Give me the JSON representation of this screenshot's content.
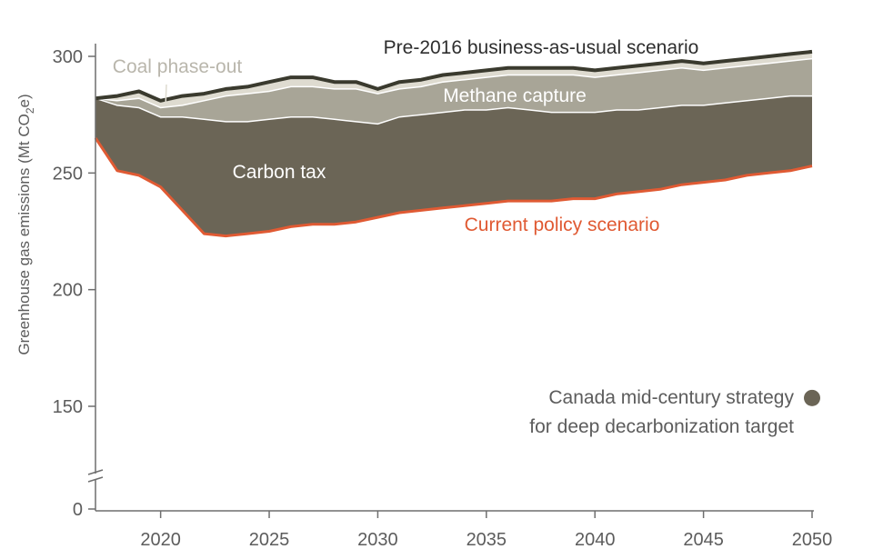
{
  "chart_data": {
    "type": "area",
    "title": "",
    "xlabel": "",
    "ylabel": {
      "prefix": "Greenhouse gas emissions (Mt CO",
      "sub": "2",
      "suffix": "e)"
    },
    "xlim": [
      2017,
      2050
    ],
    "ylim": [
      0,
      315
    ],
    "y_axis_break": "between 0 and 150 (break marks on axis)",
    "x_ticks": [
      2020,
      2025,
      2030,
      2035,
      2040,
      2045,
      2050
    ],
    "y_ticks": [
      0,
      150,
      200,
      250,
      300
    ],
    "grid": false,
    "legend": "none (direct labels)",
    "x": [
      2017,
      2018,
      2019,
      2020,
      2021,
      2022,
      2023,
      2024,
      2025,
      2026,
      2027,
      2028,
      2029,
      2030,
      2031,
      2032,
      2033,
      2034,
      2035,
      2036,
      2037,
      2038,
      2039,
      2040,
      2041,
      2042,
      2043,
      2044,
      2045,
      2046,
      2047,
      2048,
      2049,
      2050
    ],
    "series": [
      {
        "name": "Pre-2016 business-as-usual scenario",
        "values": [
          282,
          283,
          285,
          281,
          283,
          284,
          286,
          287,
          289,
          291,
          291,
          289,
          289,
          286,
          289,
          290,
          292,
          293,
          294,
          295,
          295,
          295,
          295,
          294,
          295,
          296,
          297,
          298,
          297,
          298,
          299,
          300,
          301,
          302
        ]
      },
      {
        "name": "Coal phase-out",
        "values": [
          282,
          281,
          282,
          278,
          279,
          281,
          283,
          284,
          285,
          287,
          287,
          286,
          286,
          284,
          286,
          287,
          289,
          290,
          291,
          292,
          292,
          292,
          292,
          291,
          292,
          293,
          294,
          295,
          294,
          295,
          296,
          297,
          298,
          299
        ]
      },
      {
        "name": "Methane capture",
        "values": [
          282,
          279,
          278,
          274,
          274,
          273,
          272,
          272,
          273,
          274,
          274,
          273,
          272,
          271,
          274,
          275,
          276,
          277,
          277,
          278,
          277,
          276,
          276,
          276,
          277,
          277,
          278,
          279,
          279,
          280,
          281,
          282,
          283,
          283
        ]
      },
      {
        "name": "Carbon tax",
        "values": [
          265,
          251,
          249,
          244,
          234,
          224,
          223,
          224,
          225,
          227,
          228,
          228,
          229,
          231,
          233,
          234,
          235,
          236,
          237,
          238,
          238,
          238,
          239,
          239,
          241,
          242,
          243,
          245,
          246,
          247,
          249,
          250,
          251,
          253
        ]
      },
      {
        "name": "Current policy scenario",
        "values": [
          265,
          251,
          249,
          244,
          234,
          224,
          223,
          224,
          225,
          227,
          228,
          228,
          229,
          231,
          233,
          234,
          235,
          236,
          237,
          238,
          238,
          238,
          239,
          239,
          241,
          242,
          243,
          245,
          246,
          247,
          249,
          250,
          251,
          253
        ]
      }
    ],
    "target_point": {
      "label_line1": "Canada mid-century strategy",
      "label_line2": "for deep decarbonization target",
      "x": 2050,
      "y": 152
    },
    "labels": {
      "bau": "Pre-2016 business-as-usual scenario",
      "coal": "Coal phase-out",
      "methane": "Methane capture",
      "carbon_tax": "Carbon tax",
      "current_policy": "Current policy scenario"
    },
    "colors": {
      "bau_line": "#3a3a2e",
      "coal_band": "#dedbd0",
      "methane_band": "#a8a597",
      "carbon_tax_band": "#6b6556",
      "current_policy_line": "#e05a33",
      "band_separator": "#ffffff",
      "target_dot": "#6b6556",
      "axis": "#6e6e6e",
      "tick_text": "#5c5c5c",
      "label_dark": "#2e2e2e",
      "label_light": "#ffffff",
      "label_coal": "#b9b6ac"
    }
  }
}
